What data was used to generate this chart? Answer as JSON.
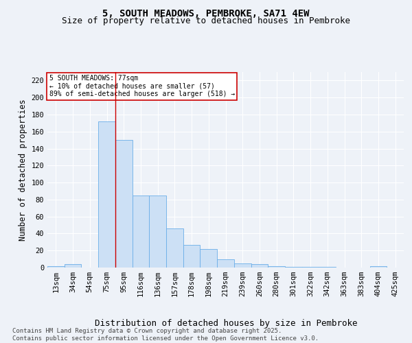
{
  "title": "5, SOUTH MEADOWS, PEMBROKE, SA71 4EW",
  "subtitle": "Size of property relative to detached houses in Pembroke",
  "xlabel": "Distribution of detached houses by size in Pembroke",
  "ylabel": "Number of detached properties",
  "categories": [
    "13sqm",
    "34sqm",
    "54sqm",
    "75sqm",
    "95sqm",
    "116sqm",
    "136sqm",
    "157sqm",
    "178sqm",
    "198sqm",
    "219sqm",
    "239sqm",
    "260sqm",
    "280sqm",
    "301sqm",
    "322sqm",
    "342sqm",
    "363sqm",
    "383sqm",
    "404sqm",
    "425sqm"
  ],
  "bar_values": [
    2,
    4,
    0,
    172,
    150,
    85,
    85,
    46,
    27,
    22,
    10,
    5,
    4,
    2,
    1,
    1,
    1,
    0,
    0,
    2,
    0
  ],
  "bar_color": "#cce0f5",
  "bar_edge_color": "#6aaee8",
  "annotation_box_text": "5 SOUTH MEADOWS: 77sqm\n← 10% of detached houses are smaller (57)\n89% of semi-detached houses are larger (518) →",
  "annotation_box_color": "#ffffff",
  "annotation_box_edge_color": "#cc0000",
  "red_line_x": 3.5,
  "ylim": [
    0,
    230
  ],
  "yticks": [
    0,
    20,
    40,
    60,
    80,
    100,
    120,
    140,
    160,
    180,
    200,
    220
  ],
  "footer_text": "Contains HM Land Registry data © Crown copyright and database right 2025.\nContains public sector information licensed under the Open Government Licence v3.0.",
  "bg_color": "#eef2f8",
  "plot_bg_color": "#eef2f8",
  "grid_color": "#ffffff",
  "title_fontsize": 10,
  "subtitle_fontsize": 9,
  "axis_label_fontsize": 8.5,
  "tick_fontsize": 7.5,
  "footer_fontsize": 6.5
}
